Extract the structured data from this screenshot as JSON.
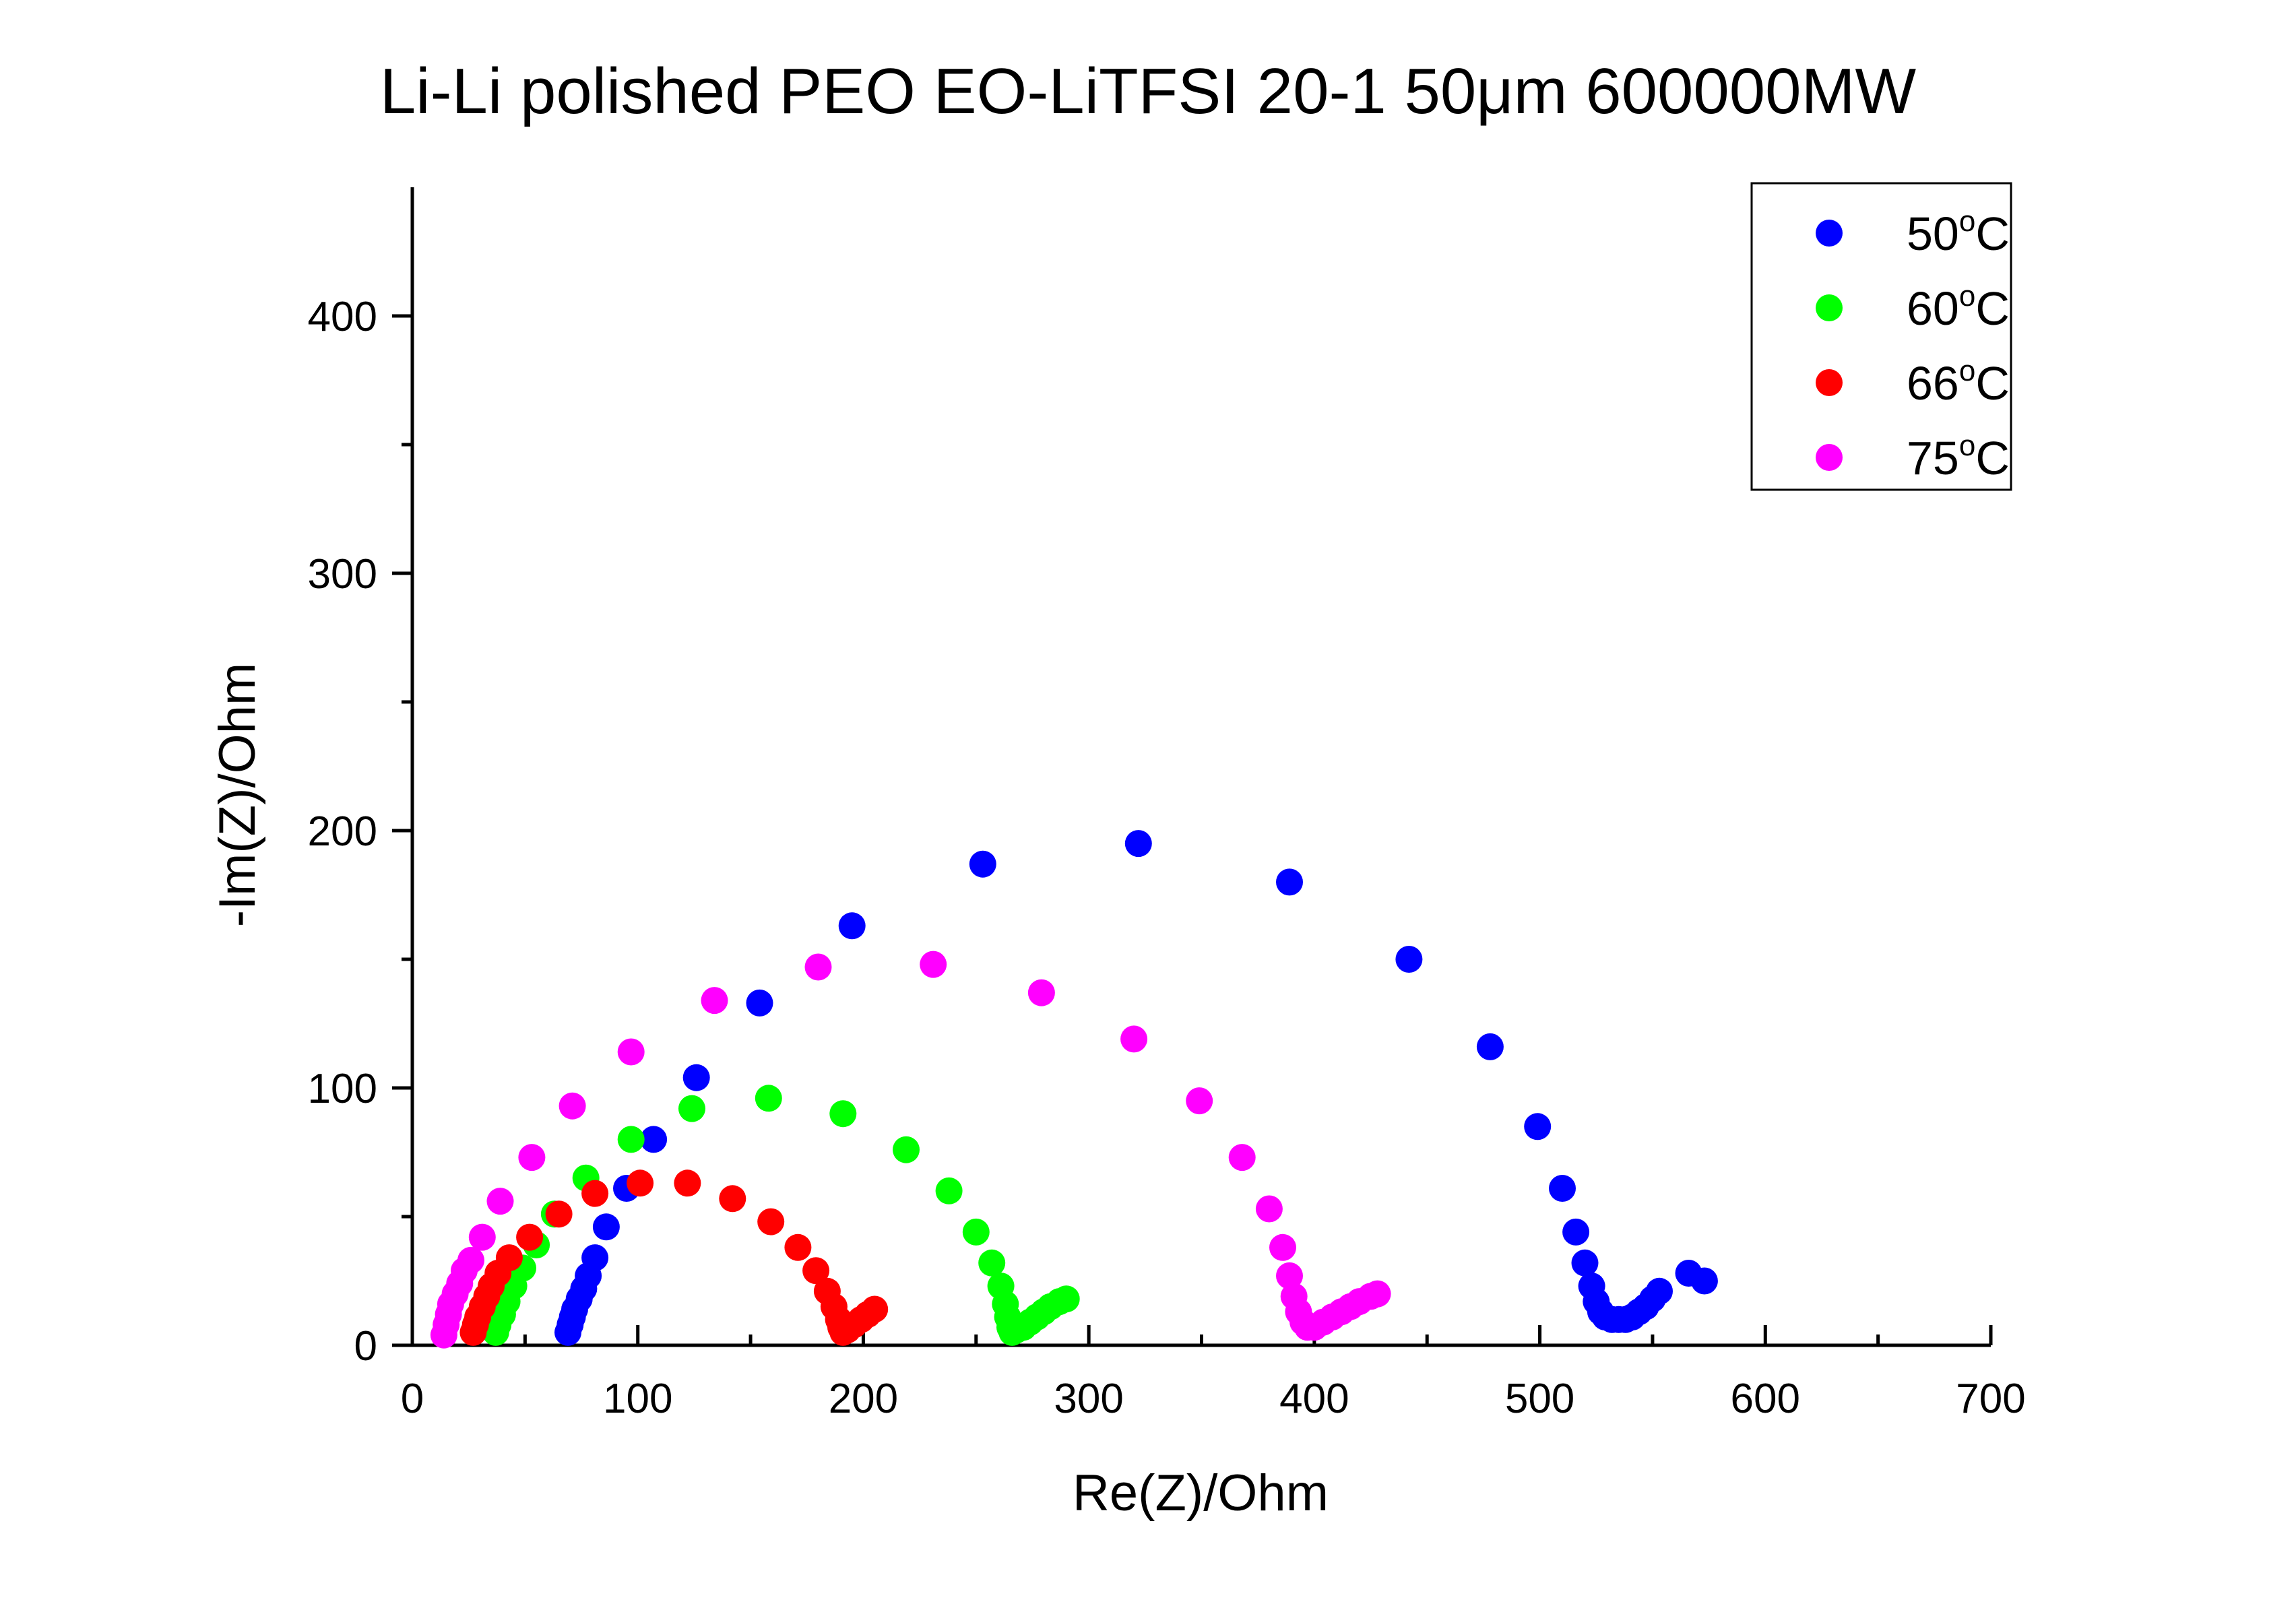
{
  "chart_data": {
    "type": "scatter",
    "title": "Li-Li polished PEO EO-LiTFSI 20-1 50μm 600000MW",
    "xlabel": "Re(Z)/Ohm",
    "ylabel": "-Im(Z)/Ohm",
    "xlim": [
      0,
      700
    ],
    "ylim": [
      0,
      450
    ],
    "x_ticks": [
      "0",
      "100",
      "200",
      "300",
      "400",
      "500",
      "600",
      "700"
    ],
    "y_ticks": [
      "0",
      "100",
      "200",
      "300",
      "400"
    ],
    "grid": false,
    "legend": {
      "position": "top-right",
      "superscript": "o",
      "unit": "C"
    },
    "series": [
      {
        "name": "50",
        "color": "#0000ff",
        "points": [
          [
            69,
            5
          ],
          [
            70,
            8
          ],
          [
            71,
            11
          ],
          [
            72,
            14
          ],
          [
            74,
            18
          ],
          [
            76,
            22
          ],
          [
            78,
            27
          ],
          [
            81,
            34
          ],
          [
            86,
            46
          ],
          [
            95,
            61
          ],
          [
            107,
            80
          ],
          [
            126,
            104
          ],
          [
            154,
            133
          ],
          [
            195,
            163
          ],
          [
            253,
            187
          ],
          [
            322,
            195
          ],
          [
            389,
            180
          ],
          [
            442,
            150
          ],
          [
            478,
            116
          ],
          [
            499,
            85
          ],
          [
            510,
            61
          ],
          [
            516,
            44
          ],
          [
            520,
            32
          ],
          [
            523,
            23
          ],
          [
            525,
            17
          ],
          [
            527,
            13
          ],
          [
            529,
            11
          ],
          [
            532,
            10
          ],
          [
            535,
            10
          ],
          [
            538,
            10
          ],
          [
            541,
            11
          ],
          [
            544,
            13
          ],
          [
            547,
            15
          ],
          [
            550,
            18
          ],
          [
            553,
            21
          ],
          [
            566,
            28
          ],
          [
            573,
            25
          ]
        ]
      },
      {
        "name": "60",
        "color": "#00ff00",
        "points": [
          [
            37,
            5
          ],
          [
            38,
            8
          ],
          [
            40,
            12
          ],
          [
            42,
            17
          ],
          [
            45,
            23
          ],
          [
            49,
            30
          ],
          [
            55,
            39
          ],
          [
            63,
            51
          ],
          [
            77,
            65
          ],
          [
            97,
            80
          ],
          [
            124,
            92
          ],
          [
            158,
            96
          ],
          [
            191,
            90
          ],
          [
            219,
            76
          ],
          [
            238,
            60
          ],
          [
            250,
            44
          ],
          [
            257,
            32
          ],
          [
            261,
            23
          ],
          [
            263,
            16
          ],
          [
            264,
            11
          ],
          [
            265,
            7
          ],
          [
            266,
            5
          ],
          [
            268,
            6
          ],
          [
            271,
            7
          ],
          [
            274,
            9
          ],
          [
            277,
            11
          ],
          [
            280,
            13
          ],
          [
            283,
            15
          ],
          [
            287,
            17
          ],
          [
            290,
            18
          ]
        ]
      },
      {
        "name": "66",
        "color": "#ff0000",
        "points": [
          [
            27,
            5
          ],
          [
            28,
            8
          ],
          [
            29,
            11
          ],
          [
            31,
            15
          ],
          [
            33,
            19
          ],
          [
            35,
            23
          ],
          [
            38,
            28
          ],
          [
            43,
            34
          ],
          [
            52,
            42
          ],
          [
            65,
            51
          ],
          [
            81,
            59
          ],
          [
            101,
            63
          ],
          [
            122,
            63
          ],
          [
            142,
            57
          ],
          [
            159,
            48
          ],
          [
            171,
            38
          ],
          [
            179,
            29
          ],
          [
            184,
            21
          ],
          [
            187,
            15
          ],
          [
            189,
            10
          ],
          [
            190,
            7
          ],
          [
            191,
            5
          ],
          [
            193,
            6
          ],
          [
            196,
            8
          ],
          [
            199,
            10
          ],
          [
            202,
            12
          ],
          [
            205,
            14
          ]
        ]
      },
      {
        "name": "75",
        "color": "#ff00ff",
        "points": [
          [
            14,
            4
          ],
          [
            15,
            8
          ],
          [
            16,
            12
          ],
          [
            17,
            16
          ],
          [
            19,
            20
          ],
          [
            21,
            24
          ],
          [
            23,
            29
          ],
          [
            26,
            33
          ],
          [
            31,
            42
          ],
          [
            39,
            56
          ],
          [
            53,
            73
          ],
          [
            71,
            93
          ],
          [
            97,
            114
          ],
          [
            134,
            134
          ],
          [
            180,
            147
          ],
          [
            231,
            148
          ],
          [
            279,
            137
          ],
          [
            320,
            119
          ],
          [
            349,
            95
          ],
          [
            368,
            73
          ],
          [
            380,
            53
          ],
          [
            386,
            38
          ],
          [
            389,
            27
          ],
          [
            391,
            19
          ],
          [
            393,
            13
          ],
          [
            395,
            9
          ],
          [
            397,
            7
          ],
          [
            400,
            7
          ],
          [
            404,
            9
          ],
          [
            408,
            11
          ],
          [
            412,
            13
          ],
          [
            416,
            15
          ],
          [
            420,
            17
          ],
          [
            425,
            19
          ],
          [
            428,
            20
          ]
        ]
      }
    ]
  }
}
